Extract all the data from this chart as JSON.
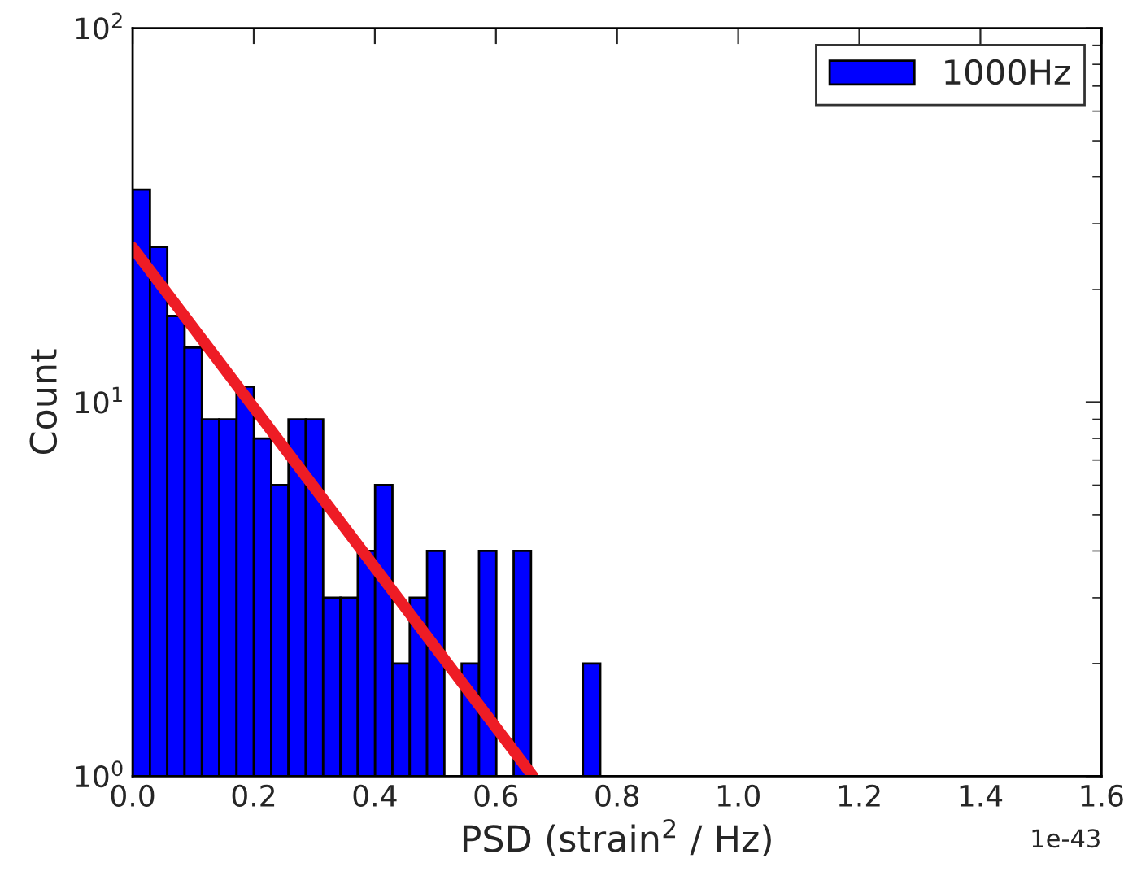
{
  "chart_data": {
    "type": "histogram",
    "xlabel": "PSD (strain$^{2}$ / Hz)",
    "ylabel": "Count",
    "bins": [
      0,
      0.0286,
      0.0572,
      0.0858,
      0.1144,
      0.143,
      0.1716,
      0.2002,
      0.2288,
      0.2574,
      0.286,
      0.3146,
      0.3432,
      0.3718,
      0.4004,
      0.429,
      0.4576,
      0.4862,
      0.5148,
      0.5434,
      0.572,
      0.6006,
      0.6292,
      0.6578,
      0.6864,
      0.715,
      0.7436,
      0.7722,
      0.8008,
      0.8294,
      0.858,
      0.8866,
      0.9152
    ],
    "series": [
      {
        "name": "1000Hz",
        "color": "#0000ff",
        "values": [
          37,
          26,
          17,
          14,
          9,
          9,
          11,
          8,
          6,
          9,
          9,
          3,
          3,
          4,
          6,
          2,
          3,
          4,
          1,
          2,
          4,
          1,
          4,
          1,
          1,
          1,
          2,
          1,
          1,
          1,
          1,
          1
        ]
      },
      {
        "type": "line",
        "color": "#ee1c25",
        "x": [
          0,
          0.661
        ],
        "values": [
          25.9,
          1
        ]
      }
    ],
    "log": "y",
    "xlim": [
      0,
      1.6
    ],
    "ylim": [
      1,
      100
    ],
    "xticks": [
      {
        "value": 0,
        "label": "0.0"
      },
      0.2,
      0.4,
      0.6,
      0.8,
      {
        "value": 1,
        "label": "1.0"
      },
      1.2,
      1.4,
      1.6
    ],
    "yticks": [
      {
        "value": 1,
        "label": "10$^{0}$"
      },
      {
        "value": 10,
        "label": "10$^{1}$"
      },
      {
        "value": 100,
        "label": "10$^{2}$"
      }
    ],
    "annotations": [
      "1e-43"
    ],
    "legend": "top right",
    "grid": false
  }
}
